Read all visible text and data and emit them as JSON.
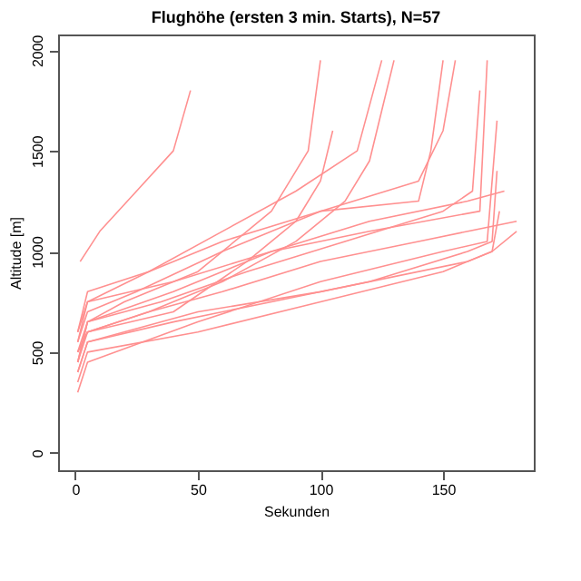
{
  "chart_data": {
    "type": "line",
    "title": "Flughöhe (ersten 3 min. Starts), N=57",
    "xlabel": "Sekunden",
    "ylabel": "Altitude [m]",
    "xlim": [
      -7,
      187
    ],
    "xticks": [
      0,
      50,
      100,
      150
    ],
    "ylim": [
      -87,
      2078
    ],
    "yticks": [
      0,
      500,
      1000,
      1500,
      2000
    ],
    "grid": false,
    "legend": false,
    "line_style": "solid",
    "marker": "none",
    "series": [
      {
        "color": "#ff9090",
        "x": [
          2,
          10,
          25,
          40,
          47
        ],
        "values": [
          950,
          1100,
          1300,
          1500,
          1800
        ]
      },
      {
        "color": "#ff9090",
        "x": [
          1,
          5,
          20,
          50,
          80,
          95,
          100
        ],
        "values": [
          450,
          650,
          750,
          900,
          1200,
          1500,
          1950
        ]
      },
      {
        "color": "#ff9090",
        "x": [
          1,
          5,
          30,
          60,
          90,
          110,
          120,
          125,
          130
        ],
        "values": [
          500,
          600,
          700,
          850,
          1050,
          1250,
          1450,
          1700,
          1950
        ]
      },
      {
        "color": "#ff9090",
        "x": [
          1,
          5,
          40,
          80,
          120,
          160,
          170,
          172
        ],
        "values": [
          400,
          550,
          650,
          750,
          850,
          1000,
          1050,
          1400
        ]
      },
      {
        "color": "#ff9090",
        "x": [
          1,
          5,
          25,
          60,
          100,
          140,
          150,
          155
        ],
        "values": [
          550,
          700,
          800,
          1000,
          1200,
          1350,
          1600,
          1950
        ]
      },
      {
        "color": "#ff9090",
        "x": [
          1,
          5,
          50,
          100,
          150,
          170,
          180
        ],
        "values": [
          350,
          500,
          600,
          750,
          900,
          1000,
          1100
        ]
      },
      {
        "color": "#ff9090",
        "x": [
          1,
          5,
          30,
          60,
          90,
          115,
          125
        ],
        "values": [
          600,
          800,
          900,
          1100,
          1300,
          1500,
          1950
        ]
      },
      {
        "color": "#ff9090",
        "x": [
          1,
          5,
          50,
          100,
          150,
          168,
          172
        ],
        "values": [
          300,
          450,
          650,
          850,
          1000,
          1050,
          1650
        ]
      },
      {
        "color": "#ff9090",
        "x": [
          1,
          5,
          40,
          80,
          120,
          160,
          175
        ],
        "values": [
          500,
          650,
          800,
          1000,
          1150,
          1250,
          1300
        ]
      },
      {
        "color": "#ff9090",
        "x": [
          1,
          5,
          40,
          70,
          90,
          100,
          105
        ],
        "values": [
          450,
          600,
          700,
          950,
          1150,
          1350,
          1600
        ]
      },
      {
        "color": "#ff9090",
        "x": [
          1,
          5,
          30,
          60,
          100,
          140,
          145,
          150
        ],
        "values": [
          550,
          750,
          900,
          1050,
          1200,
          1250,
          1500,
          1950
        ]
      },
      {
        "color": "#ff9090",
        "x": [
          1,
          5,
          50,
          100,
          160,
          170,
          173
        ],
        "values": [
          400,
          550,
          700,
          800,
          950,
          1000,
          1200
        ]
      },
      {
        "color": "#ff9090",
        "x": [
          1,
          5,
          40,
          80,
          120,
          165,
          168
        ],
        "values": [
          600,
          750,
          850,
          1000,
          1100,
          1200,
          1950
        ]
      },
      {
        "color": "#ff9090",
        "x": [
          1,
          5,
          30,
          60,
          100,
          140,
          180
        ],
        "values": [
          500,
          600,
          700,
          800,
          950,
          1050,
          1150
        ]
      },
      {
        "color": "#ff9090",
        "x": [
          1,
          5,
          35,
          70,
          110,
          150,
          162,
          165
        ],
        "values": [
          450,
          650,
          750,
          900,
          1050,
          1200,
          1300,
          1800
        ]
      }
    ]
  }
}
